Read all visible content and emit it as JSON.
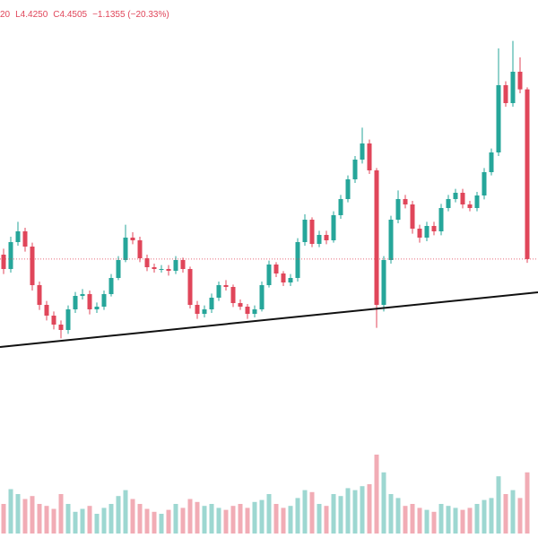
{
  "chart_data": {
    "type": "candlestick",
    "ohlc_legend": [
      "20",
      "L4.4250",
      "C4.4505",
      "−1.1355 (−20.33%)"
    ],
    "open": [
      4.48,
      4.384,
      4.564,
      4.636,
      4.534,
      4.276,
      4.144,
      4.072,
      4.012,
      3.976,
      4.114,
      4.204,
      4.216,
      4.114,
      4.132,
      4.216,
      4.324,
      4.444,
      4.594,
      4.576,
      4.456,
      4.396,
      4.384,
      4.384,
      4.372,
      4.444,
      4.384,
      4.144,
      4.084,
      4.114,
      4.192,
      4.276,
      4.264,
      4.156,
      4.132,
      4.084,
      4.114,
      4.276,
      4.414,
      4.354,
      4.294,
      4.324,
      4.564,
      4.714,
      4.552,
      4.612,
      4.576,
      4.744,
      4.852,
      4.984,
      5.116,
      5.224,
      5.044,
      4.144,
      4.444,
      4.714,
      4.852,
      4.816,
      4.654,
      4.594,
      4.672,
      4.636,
      4.792,
      4.852,
      4.894,
      4.816,
      4.792,
      4.876,
      5.032,
      5.164,
      5.614,
      5.494,
      5.704,
      5.586
    ],
    "high": [
      4.52,
      4.6,
      4.7,
      4.66,
      4.56,
      4.3,
      4.17,
      4.1,
      4.04,
      4.14,
      4.23,
      4.25,
      4.24,
      4.16,
      4.24,
      4.35,
      4.47,
      4.68,
      4.63,
      4.6,
      4.48,
      4.42,
      4.41,
      4.41,
      4.47,
      4.46,
      4.4,
      4.17,
      4.14,
      4.22,
      4.3,
      4.31,
      4.28,
      4.18,
      4.15,
      4.14,
      4.3,
      4.44,
      4.43,
      4.37,
      4.35,
      4.59,
      4.75,
      4.73,
      4.64,
      4.64,
      4.77,
      4.88,
      5.01,
      5.14,
      5.33,
      5.25,
      5.06,
      4.47,
      4.74,
      4.91,
      4.88,
      4.84,
      4.68,
      4.7,
      4.7,
      4.82,
      4.88,
      4.92,
      4.92,
      4.84,
      4.9,
      5.06,
      5.19,
      5.86,
      5.64,
      5.91,
      5.8,
      5.6
    ],
    "low": [
      4.35,
      4.36,
      4.54,
      4.5,
      4.24,
      4.11,
      4.04,
      3.98,
      3.92,
      3.95,
      4.09,
      4.18,
      4.08,
      4.09,
      4.11,
      4.2,
      4.31,
      4.43,
      4.55,
      4.43,
      4.37,
      4.36,
      4.36,
      4.34,
      4.35,
      4.36,
      4.12,
      4.05,
      4.06,
      4.09,
      4.17,
      4.24,
      4.13,
      4.11,
      4.05,
      4.06,
      4.1,
      4.26,
      4.33,
      4.27,
      4.27,
      4.3,
      4.54,
      4.53,
      4.53,
      4.55,
      4.56,
      4.72,
      4.83,
      4.96,
      5.09,
      5.02,
      3.99,
      4.1,
      4.42,
      4.69,
      4.79,
      4.62,
      4.56,
      4.57,
      4.61,
      4.61,
      4.77,
      4.83,
      4.79,
      4.77,
      4.77,
      4.85,
      5.01,
      5.14,
      5.47,
      5.47,
      5.56,
      4.425
    ],
    "close": [
      4.384,
      4.564,
      4.636,
      4.534,
      4.276,
      4.144,
      4.072,
      4.012,
      3.976,
      4.114,
      4.204,
      4.216,
      4.114,
      4.132,
      4.216,
      4.324,
      4.444,
      4.594,
      4.576,
      4.456,
      4.396,
      4.384,
      4.384,
      4.372,
      4.444,
      4.384,
      4.144,
      4.084,
      4.114,
      4.192,
      4.276,
      4.264,
      4.156,
      4.132,
      4.084,
      4.114,
      4.276,
      4.414,
      4.354,
      4.294,
      4.324,
      4.564,
      4.714,
      4.552,
      4.612,
      4.576,
      4.744,
      4.852,
      4.984,
      5.116,
      5.224,
      5.044,
      4.144,
      4.444,
      4.714,
      4.852,
      4.816,
      4.654,
      4.594,
      4.672,
      4.636,
      4.792,
      4.852,
      4.894,
      4.816,
      4.792,
      4.876,
      5.032,
      5.164,
      5.614,
      5.494,
      5.704,
      5.586,
      4.4505
    ],
    "volume": [
      30,
      45,
      40,
      35,
      38,
      30,
      28,
      25,
      40,
      30,
      22,
      25,
      28,
      20,
      26,
      30,
      38,
      44,
      35,
      30,
      25,
      22,
      20,
      24,
      30,
      26,
      35,
      32,
      28,
      30,
      26,
      24,
      28,
      30,
      26,
      32,
      34,
      40,
      30,
      26,
      28,
      36,
      44,
      42,
      30,
      28,
      40,
      38,
      46,
      44,
      48,
      50,
      80,
      62,
      40,
      36,
      28,
      30,
      26,
      24,
      22,
      30,
      28,
      26,
      24,
      26,
      30,
      34,
      36,
      58,
      40,
      44,
      36,
      62
    ],
    "ylim": [
      2.584,
      6.184
    ],
    "vlim": [
      0,
      100
    ],
    "trendline": [
      3.862,
      4.228
    ],
    "up_color": "#26a69a",
    "down_color": "#e0465a"
  }
}
